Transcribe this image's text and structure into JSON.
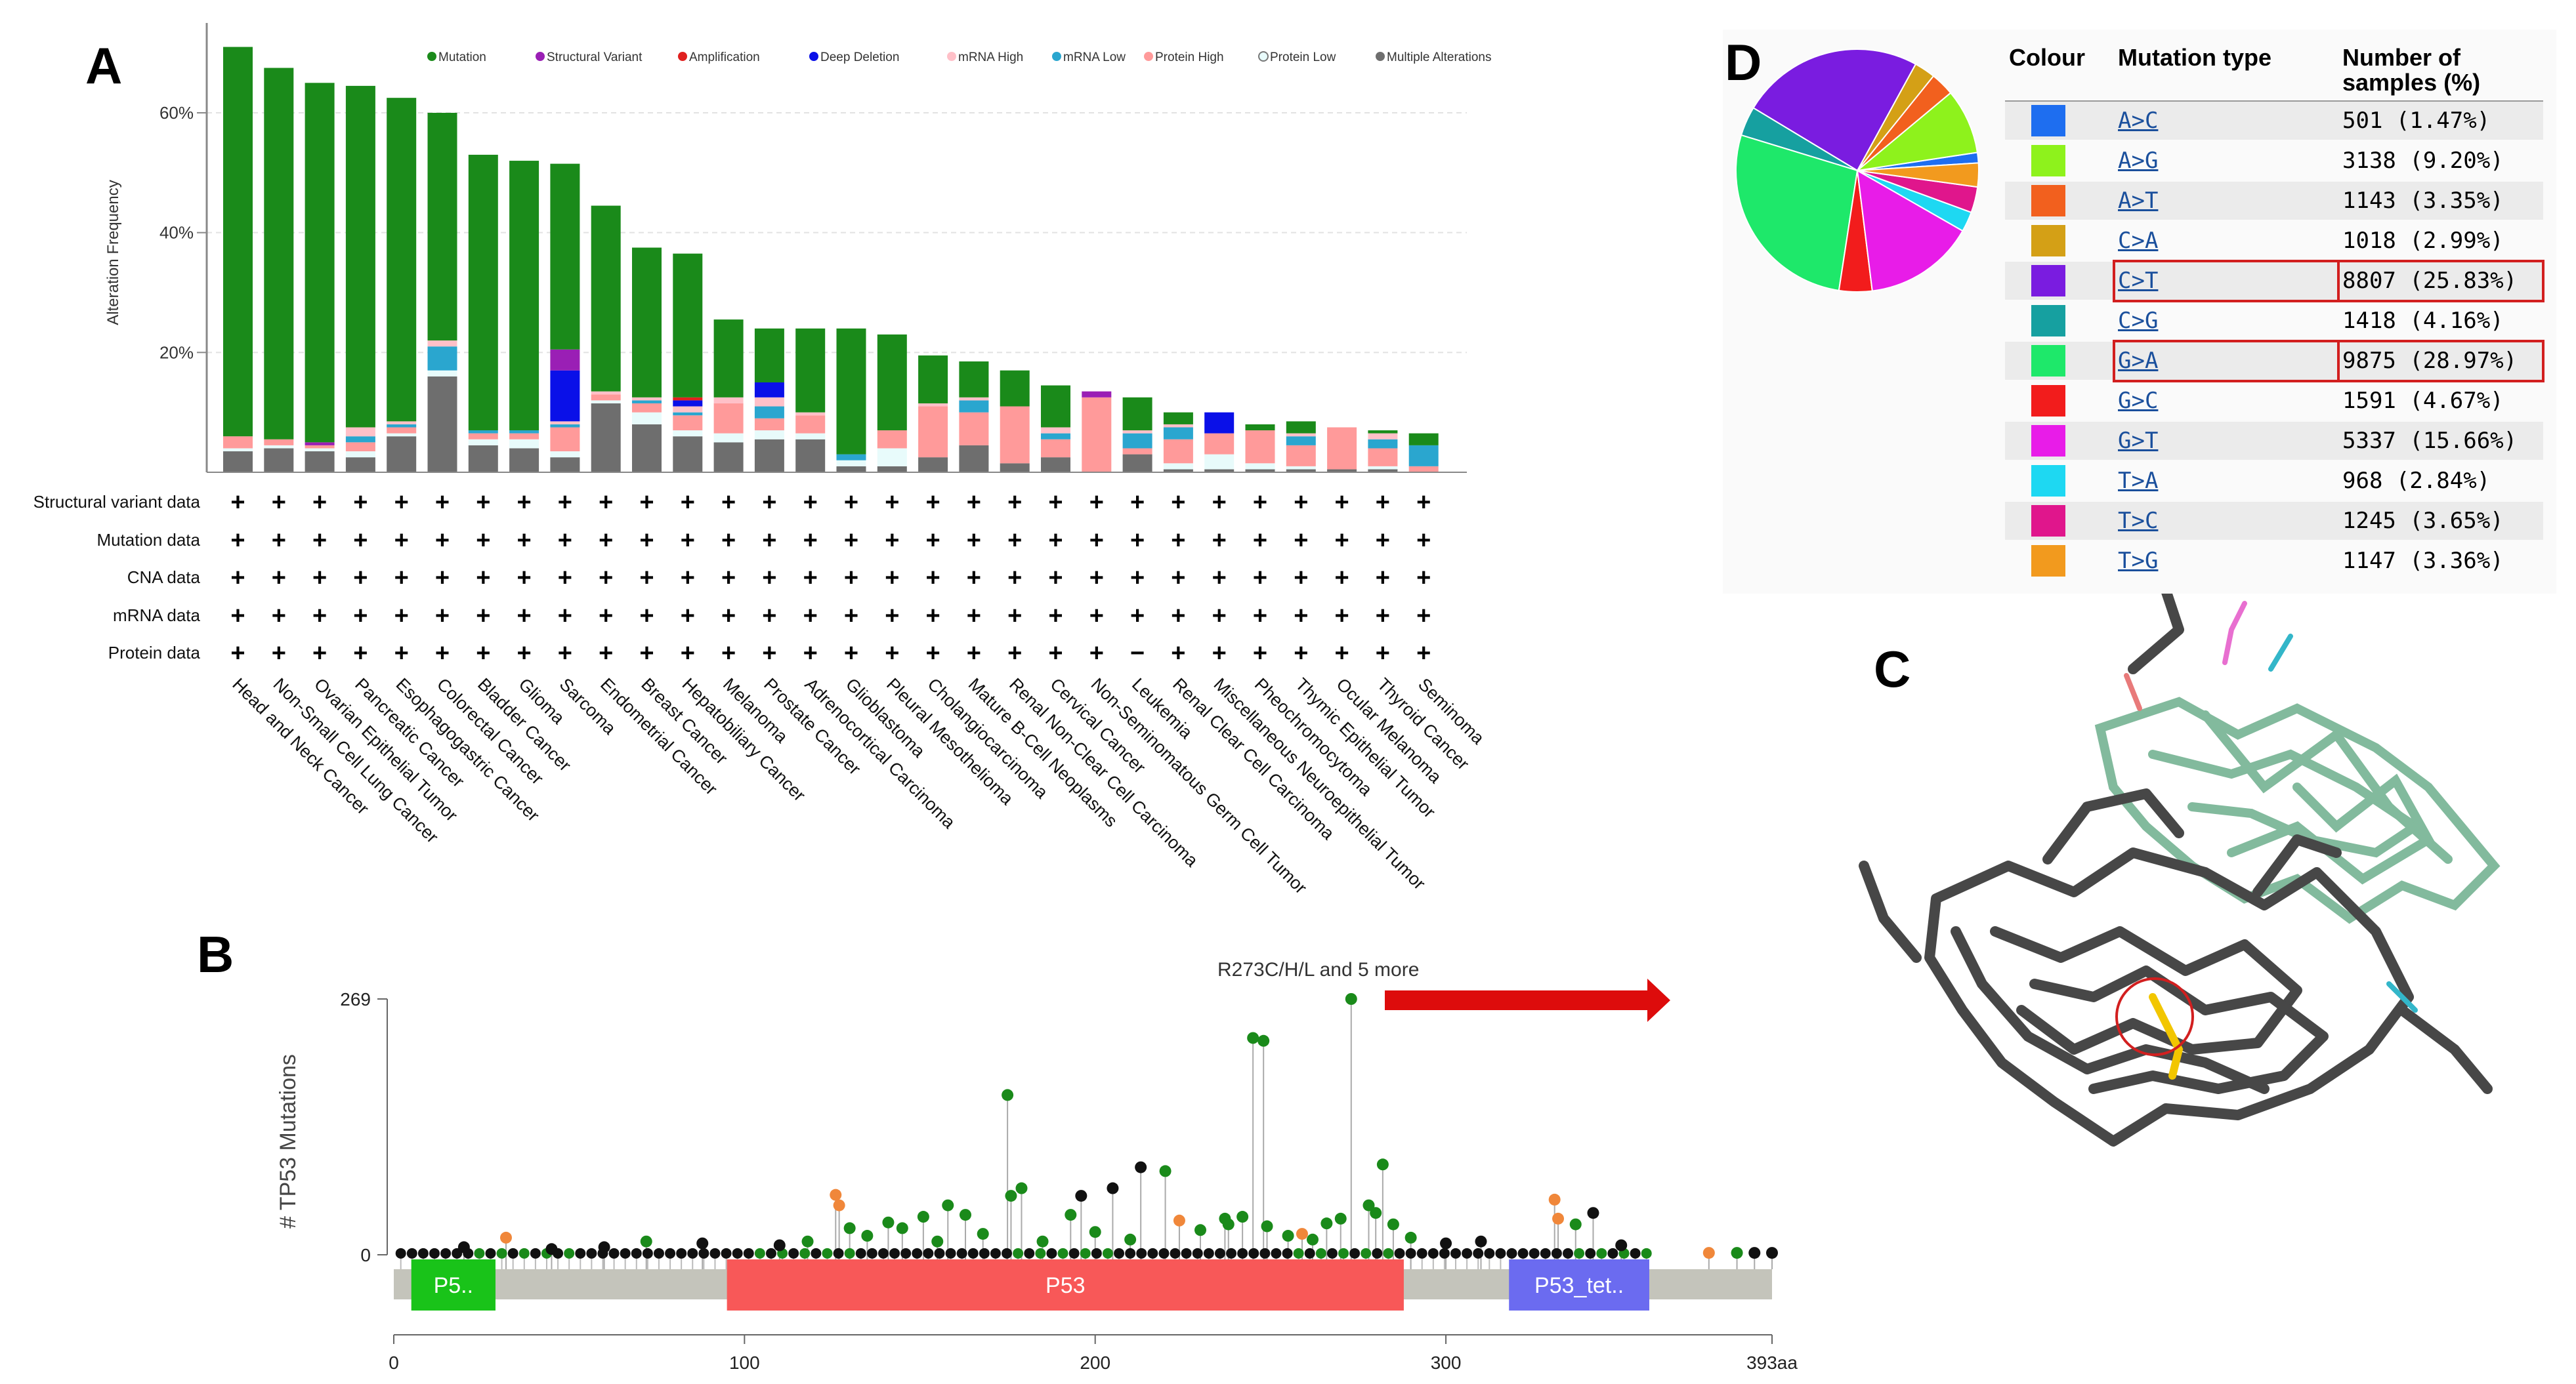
{
  "panels": {
    "a": "A",
    "b": "B",
    "c": "C",
    "d": "D"
  },
  "panel_a": {
    "ylabel": "Alteration Frequency",
    "legend": [
      {
        "label": "Mutation",
        "color": "#1a8a1a"
      },
      {
        "label": "Structural Variant",
        "color": "#9a1fb5"
      },
      {
        "label": "Amplification",
        "color": "#e0201f"
      },
      {
        "label": "Deep Deletion",
        "color": "#0a10e8"
      },
      {
        "label": "mRNA High",
        "color": "#ffc0c8"
      },
      {
        "label": "mRNA Low",
        "color": "#2aa6cf"
      },
      {
        "label": "Protein High",
        "color": "#ff9a9a"
      },
      {
        "label": "Protein Low",
        "color": "#e8fbfb"
      },
      {
        "label": "Multiple Alterations",
        "color": "#6e6e6e"
      }
    ],
    "row_labels": [
      "Structural variant data",
      "Mutation data",
      "CNA data",
      "mRNA data",
      "Protein data"
    ],
    "plus_symbol": "+",
    "minus_symbol": "−"
  },
  "chart_data": [
    {
      "type": "bar",
      "stacked": true,
      "title": "",
      "ylabel": "Alteration Frequency",
      "ylim": [
        0,
        75
      ],
      "yticks": [
        "20%",
        "40%",
        "60%"
      ],
      "ytick_values": [
        20,
        40,
        60
      ],
      "categories": [
        "Head and Neck Cancer",
        "Non-Small Cell Lung Cancer",
        "Ovarian Epithelial Tumor",
        "Pancreatic Cancer",
        "Esophagogastric Cancer",
        "Colorectal Cancer",
        "Bladder Cancer",
        "Glioma",
        "Sarcoma",
        "Endometrial Cancer",
        "Breast Cancer",
        "Hepatobiliary Cancer",
        "Melanoma",
        "Prostate Cancer",
        "Adrenocortical Carcinoma",
        "Glioblastoma",
        "Pleural Mesothelioma",
        "Cholangiocarcinoma",
        "Mature B-Cell Neoplasms",
        "Renal Non-Clear Cell Carcinoma",
        "Cervical Cancer",
        "Non-Seminomatous Germ Cell Tumor",
        "Leukemia",
        "Renal Clear Cell Carcinoma",
        "Miscellaneous Neuroepithelial Tumor",
        "Pheochromocytoma",
        "Thymic Epithelial Tumor",
        "Ocular Melanoma",
        "Thyroid Cancer",
        "Seminoma"
      ],
      "series": [
        {
          "name": "Multiple Alterations",
          "values": [
            3.5,
            4.0,
            3.5,
            2.5,
            6.0,
            16.0,
            4.5,
            4.0,
            2.5,
            11.5,
            8.0,
            6.0,
            5.0,
            5.5,
            5.5,
            1.0,
            1.0,
            2.5,
            4.5,
            1.5,
            2.5,
            0,
            3.0,
            0.5,
            0.5,
            0.5,
            0.5,
            0.5,
            0.5,
            0
          ]
        },
        {
          "name": "Protein Low",
          "values": [
            0.5,
            0.5,
            0.5,
            1.0,
            0.5,
            1.0,
            1.0,
            1.5,
            1.0,
            0.5,
            2.0,
            1.0,
            1.5,
            1.5,
            1.0,
            1.0,
            3.0,
            0,
            0,
            0,
            0,
            0,
            0,
            1.0,
            2.5,
            1.0,
            0.5,
            0,
            0.5,
            0
          ]
        },
        {
          "name": "Protein High",
          "values": [
            2.0,
            1.0,
            0.5,
            1.5,
            1.0,
            0,
            1.0,
            1.0,
            4.0,
            1.0,
            1.5,
            2.5,
            5.0,
            2.0,
            3.0,
            0,
            3.0,
            8.5,
            5.5,
            9.5,
            3.0,
            12.5,
            1.0,
            4.0,
            3.5,
            5.5,
            3.5,
            7.0,
            3.0,
            1.0
          ]
        },
        {
          "name": "mRNA Low",
          "values": [
            0,
            0,
            0,
            1.0,
            0.5,
            4.0,
            0.5,
            0.5,
            0.5,
            0,
            0.5,
            0.5,
            0,
            2.0,
            0,
            1.0,
            0,
            0,
            2.0,
            0,
            1.0,
            0,
            2.5,
            2.0,
            0,
            0,
            1.5,
            0,
            1.5,
            3.5
          ]
        },
        {
          "name": "mRNA High",
          "values": [
            0,
            0,
            0,
            1.5,
            0.5,
            1.0,
            0,
            0,
            0.5,
            0.5,
            0.5,
            1.0,
            1.0,
            1.5,
            0.5,
            0,
            0,
            0.5,
            0.5,
            0,
            1.0,
            0,
            0.5,
            0.5,
            0,
            0,
            0.5,
            0,
            1.0,
            0
          ]
        },
        {
          "name": "Deep Deletion",
          "values": [
            0,
            0,
            0,
            0,
            0,
            0,
            0,
            0,
            8.5,
            0,
            0,
            1.0,
            0,
            2.5,
            0,
            0,
            0,
            0,
            0,
            0,
            0,
            0,
            0,
            0,
            3.5,
            0,
            0,
            0,
            0,
            0
          ]
        },
        {
          "name": "Amplification",
          "values": [
            0,
            0,
            0,
            0,
            0,
            0,
            0,
            0,
            0,
            0,
            0,
            0.5,
            0,
            0,
            0,
            0,
            0,
            0,
            0,
            0,
            0,
            0,
            0,
            0,
            0,
            0,
            0,
            0,
            0,
            0
          ]
        },
        {
          "name": "Structural Variant",
          "values": [
            0,
            0,
            0.5,
            0,
            0,
            0,
            0,
            0,
            3.5,
            0,
            0,
            0,
            0,
            0,
            0,
            0,
            0,
            0,
            0,
            0,
            0,
            1.0,
            0,
            0,
            0,
            0,
            0,
            0,
            0,
            0
          ]
        },
        {
          "name": "Mutation",
          "values": [
            65.0,
            62.0,
            60.0,
            57.0,
            54.0,
            38.0,
            46.0,
            45.0,
            31.0,
            31.0,
            25.0,
            24.0,
            13.0,
            9.0,
            14.0,
            21.0,
            16.0,
            8.0,
            6.0,
            6.0,
            7.0,
            0,
            5.5,
            2.0,
            0,
            1.0,
            2.0,
            0,
            0.5,
            2.0
          ]
        }
      ]
    },
    {
      "type": "scatter",
      "subtype": "lollipop",
      "title": "",
      "ylabel": "# TP53 Mutations",
      "ylim": [
        0,
        269
      ],
      "yticks": [
        "0",
        "269"
      ],
      "xlim": [
        0,
        393
      ],
      "xticks": [
        "0",
        "100",
        "200",
        "300",
        "393aa"
      ],
      "xtick_values": [
        0,
        100,
        200,
        300,
        393
      ],
      "annotation": "R273C/H/L and 5 more",
      "domains": [
        {
          "label": "P5..",
          "start": 5,
          "end": 29,
          "color": "#19c319"
        },
        {
          "label": "P53",
          "start": 95,
          "end": 288,
          "color": "#f85858"
        },
        {
          "label": "P53_tet..",
          "start": 318,
          "end": 358,
          "color": "#6b6bf0"
        }
      ],
      "points": [
        {
          "x": 175,
          "y": 168,
          "color": "green"
        },
        {
          "x": 245,
          "y": 228,
          "color": "green"
        },
        {
          "x": 248,
          "y": 225,
          "color": "green"
        },
        {
          "x": 273,
          "y": 269,
          "color": "green"
        },
        {
          "x": 282,
          "y": 95,
          "color": "green"
        },
        {
          "x": 213,
          "y": 92,
          "color": "black"
        },
        {
          "x": 220,
          "y": 88,
          "color": "green"
        },
        {
          "x": 196,
          "y": 62,
          "color": "black"
        },
        {
          "x": 179,
          "y": 70,
          "color": "green"
        },
        {
          "x": 176,
          "y": 62,
          "color": "green"
        },
        {
          "x": 158,
          "y": 52,
          "color": "green"
        },
        {
          "x": 163,
          "y": 42,
          "color": "green"
        },
        {
          "x": 141,
          "y": 34,
          "color": "green"
        },
        {
          "x": 151,
          "y": 40,
          "color": "green"
        },
        {
          "x": 193,
          "y": 42,
          "color": "green"
        },
        {
          "x": 205,
          "y": 70,
          "color": "black"
        },
        {
          "x": 237,
          "y": 38,
          "color": "green"
        },
        {
          "x": 238,
          "y": 32,
          "color": "green"
        },
        {
          "x": 242,
          "y": 40,
          "color": "green"
        },
        {
          "x": 249,
          "y": 30,
          "color": "green"
        },
        {
          "x": 266,
          "y": 33,
          "color": "green"
        },
        {
          "x": 270,
          "y": 38,
          "color": "green"
        },
        {
          "x": 278,
          "y": 52,
          "color": "green"
        },
        {
          "x": 280,
          "y": 44,
          "color": "green"
        },
        {
          "x": 285,
          "y": 32,
          "color": "green"
        },
        {
          "x": 126,
          "y": 63,
          "color": "orange"
        },
        {
          "x": 127,
          "y": 52,
          "color": "orange"
        },
        {
          "x": 224,
          "y": 36,
          "color": "orange"
        },
        {
          "x": 259,
          "y": 22,
          "color": "orange"
        },
        {
          "x": 331,
          "y": 58,
          "color": "orange"
        },
        {
          "x": 332,
          "y": 38,
          "color": "orange"
        },
        {
          "x": 342,
          "y": 44,
          "color": "black"
        },
        {
          "x": 337,
          "y": 32,
          "color": "green"
        },
        {
          "x": 32,
          "y": 18,
          "color": "orange"
        },
        {
          "x": 72,
          "y": 14,
          "color": "green"
        },
        {
          "x": 130,
          "y": 28,
          "color": "green"
        },
        {
          "x": 135,
          "y": 20,
          "color": "green"
        },
        {
          "x": 145,
          "y": 28,
          "color": "green"
        },
        {
          "x": 155,
          "y": 14,
          "color": "green"
        },
        {
          "x": 168,
          "y": 22,
          "color": "green"
        },
        {
          "x": 185,
          "y": 14,
          "color": "green"
        },
        {
          "x": 200,
          "y": 24,
          "color": "green"
        },
        {
          "x": 210,
          "y": 16,
          "color": "green"
        },
        {
          "x": 230,
          "y": 26,
          "color": "green"
        },
        {
          "x": 255,
          "y": 20,
          "color": "green"
        },
        {
          "x": 262,
          "y": 16,
          "color": "green"
        },
        {
          "x": 290,
          "y": 18,
          "color": "green"
        },
        {
          "x": 300,
          "y": 12,
          "color": "black"
        },
        {
          "x": 310,
          "y": 14,
          "color": "black"
        },
        {
          "x": 350,
          "y": 10,
          "color": "black"
        },
        {
          "x": 20,
          "y": 8,
          "color": "black"
        },
        {
          "x": 45,
          "y": 6,
          "color": "black"
        },
        {
          "x": 60,
          "y": 8,
          "color": "black"
        },
        {
          "x": 88,
          "y": 12,
          "color": "black"
        },
        {
          "x": 110,
          "y": 10,
          "color": "black"
        },
        {
          "x": 118,
          "y": 14,
          "color": "green"
        },
        {
          "x": 375,
          "y": 2,
          "color": "orange"
        },
        {
          "x": 383,
          "y": 2,
          "color": "green"
        },
        {
          "x": 388,
          "y": 2,
          "color": "black"
        },
        {
          "x": 393,
          "y": 2,
          "color": "black"
        }
      ]
    },
    {
      "type": "pie",
      "title": "",
      "slices": [
        {
          "label": "A>C",
          "value": 501,
          "color": "#1e6ef0"
        },
        {
          "label": "A>G",
          "value": 3138,
          "color": "#8ef21c"
        },
        {
          "label": "A>T",
          "value": 1143,
          "color": "#f2601e"
        },
        {
          "label": "C>A",
          "value": 1018,
          "color": "#d4a016"
        },
        {
          "label": "C>T",
          "value": 8807,
          "color": "#7a1ce0"
        },
        {
          "label": "C>G",
          "value": 1418,
          "color": "#16a0a0"
        },
        {
          "label": "G>A",
          "value": 9875,
          "color": "#1ee86a"
        },
        {
          "label": "G>C",
          "value": 1591,
          "color": "#f21c1c"
        },
        {
          "label": "G>T",
          "value": 5337,
          "color": "#e81ce8"
        },
        {
          "label": "T>A",
          "value": 968,
          "color": "#1ed8f2"
        },
        {
          "label": "T>C",
          "value": 1245,
          "color": "#e0168c"
        },
        {
          "label": "T>G",
          "value": 1147,
          "color": "#f29a1e"
        }
      ]
    }
  ],
  "panel_d": {
    "headers": {
      "colour": "Colour",
      "type": "Mutation type",
      "count": "Number of samples (%)"
    },
    "rows": [
      {
        "type": "A>C",
        "count": "501 (1.47%)",
        "color": "#1e6ef0",
        "highlight": false
      },
      {
        "type": "A>G",
        "count": "3138 (9.20%)",
        "color": "#8ef21c",
        "highlight": false
      },
      {
        "type": "A>T",
        "count": "1143 (3.35%)",
        "color": "#f2601e",
        "highlight": false
      },
      {
        "type": "C>A",
        "count": "1018 (2.99%)",
        "color": "#d4a016",
        "highlight": false
      },
      {
        "type": "C>T",
        "count": "8807 (25.83%)",
        "color": "#7a1ce0",
        "highlight": true
      },
      {
        "type": "C>G",
        "count": "1418 (4.16%)",
        "color": "#16a0a0",
        "highlight": false
      },
      {
        "type": "G>A",
        "count": "9875 (28.97%)",
        "color": "#1ee86a",
        "highlight": true
      },
      {
        "type": "G>C",
        "count": "1591 (4.67%)",
        "color": "#f21c1c",
        "highlight": false
      },
      {
        "type": "G>T",
        "count": "5337 (15.66%)",
        "color": "#e81ce8",
        "highlight": false
      },
      {
        "type": "T>A",
        "count": "968 (2.84%)",
        "color": "#1ed8f2",
        "highlight": false
      },
      {
        "type": "T>C",
        "count": "1245 (3.65%)",
        "color": "#e0168c",
        "highlight": false
      },
      {
        "type": "T>G",
        "count": "1147 (3.36%)",
        "color": "#f29a1e",
        "highlight": false
      }
    ]
  }
}
